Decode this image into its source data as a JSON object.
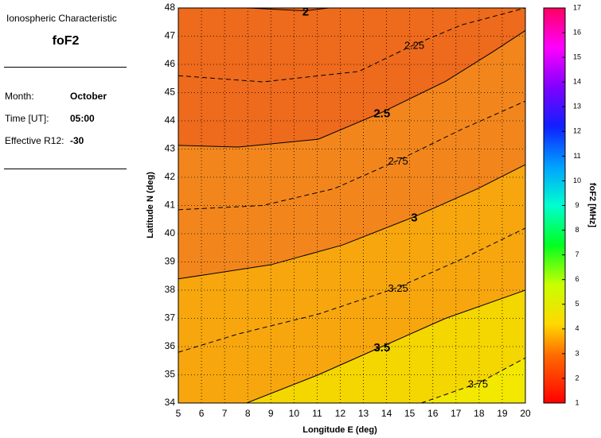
{
  "panel": {
    "heading": "Ionospheric Characteristic",
    "parameter": "foF2",
    "rows": [
      {
        "label": "Month:",
        "value": "October"
      },
      {
        "label": "Time [UT]:",
        "value": "05:00"
      },
      {
        "label": "Effective R12:",
        "value": -30
      }
    ]
  },
  "chart_data": {
    "type": "contour",
    "xlabel": "Longitude E (deg)",
    "ylabel": "Latitude N (deg)",
    "xlim": [
      5,
      20
    ],
    "ylim": [
      34,
      48
    ],
    "xticks": [
      5,
      6,
      7,
      8,
      9,
      10,
      11,
      12,
      13,
      14,
      15,
      16,
      17,
      18,
      19,
      20
    ],
    "yticks": [
      34,
      35,
      36,
      37,
      38,
      39,
      40,
      41,
      42,
      43,
      44,
      45,
      46,
      47,
      48
    ],
    "grid": true,
    "background_color": "#ee6a1c",
    "contours": [
      {
        "level": 2,
        "style": "solid",
        "lon": [
          8,
          10.5,
          11.5
        ],
        "lat": [
          48,
          47.9,
          48
        ]
      },
      {
        "level": 2.25,
        "style": "dashed",
        "lon": [
          5,
          8.65,
          12.8,
          15.2,
          17.25,
          20
        ],
        "lat": [
          45.6,
          45.38,
          45.75,
          46.7,
          47.4,
          48
        ]
      },
      {
        "level": 2.5,
        "style": "solid",
        "fill_below": "#f2861c",
        "lon": [
          5,
          7.6,
          11.05,
          13.8,
          16.55,
          18.6,
          20
        ],
        "lat": [
          43.13,
          43.07,
          43.35,
          44.3,
          45.4,
          46.45,
          47.2
        ]
      },
      {
        "level": 2.75,
        "style": "dashed",
        "lon": [
          5,
          8.65,
          11.75,
          14.5,
          17.25,
          20
        ],
        "lat": [
          40.85,
          41.0,
          41.6,
          42.6,
          43.7,
          44.7
        ]
      },
      {
        "level": 3,
        "style": "solid",
        "fill_below": "#f7a60e",
        "lon": [
          5,
          9,
          12.1,
          15.2,
          17.95,
          20
        ],
        "lat": [
          38.4,
          38.9,
          39.6,
          40.6,
          41.6,
          42.45
        ]
      },
      {
        "level": 3.25,
        "style": "dashed",
        "lon": [
          5,
          7.6,
          11.05,
          14.5,
          17.25,
          20
        ],
        "lat": [
          35.8,
          36.45,
          37.15,
          38.1,
          39.1,
          40.2
        ]
      },
      {
        "level": 3.5,
        "style": "solid",
        "fill_below": "#f4d600",
        "lon": [
          7.95,
          11.05,
          13.8,
          16.55,
          20
        ],
        "lat": [
          34,
          35.0,
          36.0,
          37.0,
          38.0
        ]
      },
      {
        "level": 3.75,
        "style": "dashed",
        "fill_below": "#f2e800",
        "lon": [
          15.5,
          17.95,
          20
        ],
        "lat": [
          34,
          34.7,
          35.6
        ]
      }
    ],
    "colorbar": {
      "label": "foF2 [MHz]",
      "lim": [
        1,
        17
      ],
      "ticks": [
        1,
        2,
        3,
        4,
        5,
        6,
        7,
        8,
        9,
        10,
        11,
        12,
        13,
        14,
        15,
        16,
        17
      ]
    }
  }
}
